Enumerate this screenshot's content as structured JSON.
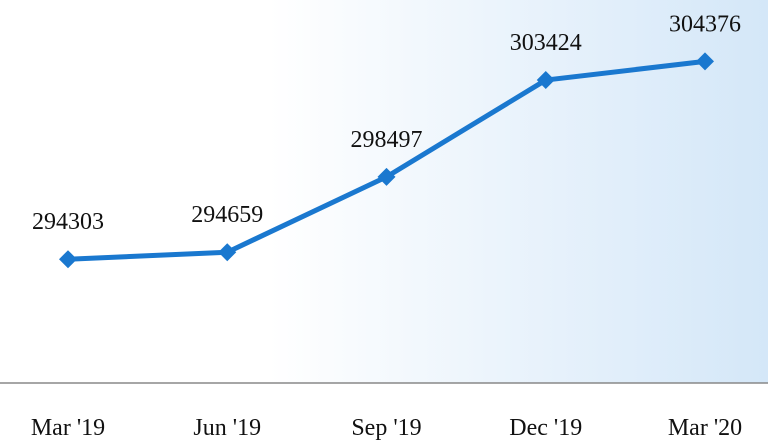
{
  "chart_data": {
    "type": "line",
    "categories": [
      "Mar '19",
      "Jun '19",
      "Sep '19",
      "Dec '19",
      "Mar '20"
    ],
    "values": [
      294303,
      294659,
      298497,
      303424,
      304376
    ],
    "color": "#1a78cf",
    "ylim": [
      288000,
      307500
    ]
  }
}
